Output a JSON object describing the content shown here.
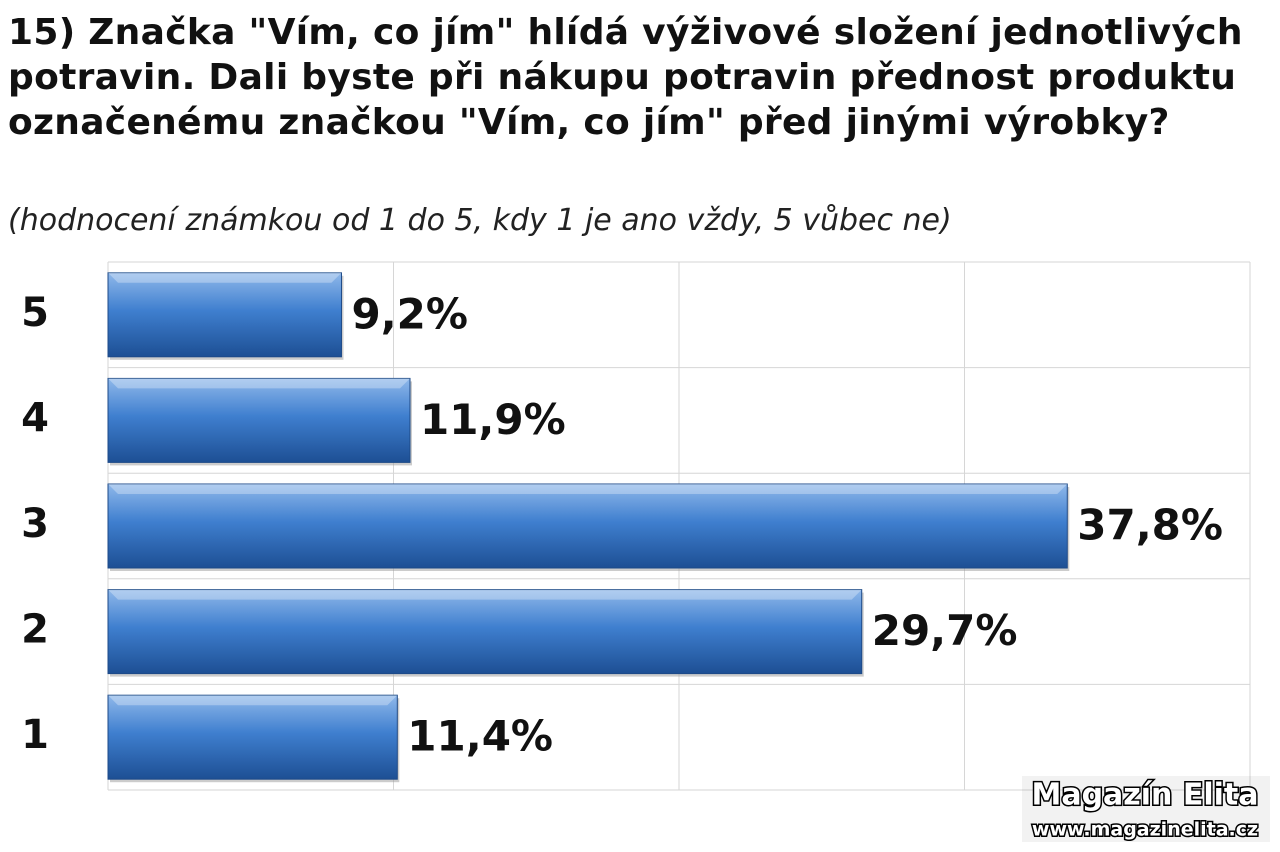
{
  "chart_data": {
    "type": "bar",
    "orientation": "horizontal",
    "title": "15) Značka \"Vím, co jím\" hlídá výživové složení jednotlivých potravin. Dali byste při nákupu potravin přednost produktu označenému značkou \"Vím, co jím\" před jinými výrobky?",
    "subtitle": "(hodnocení  známkou od 1 do 5, kdy 1 je ano vždy, 5 vůbec ne)",
    "categories": [
      "5",
      "4",
      "3",
      "2",
      "1"
    ],
    "values": [
      9.2,
      11.9,
      37.8,
      29.7,
      11.4
    ],
    "value_labels": [
      "9,2%",
      "11,9%",
      "37,8%",
      "29,7%",
      "11,4%"
    ],
    "color": "#2f6fc0",
    "xlim": [
      0,
      45
    ],
    "xticks": [
      0,
      11.25,
      22.5,
      33.75,
      45
    ],
    "grid": true,
    "watermark": [
      "Magazín Elita",
      "www.magazinelita.cz"
    ]
  }
}
